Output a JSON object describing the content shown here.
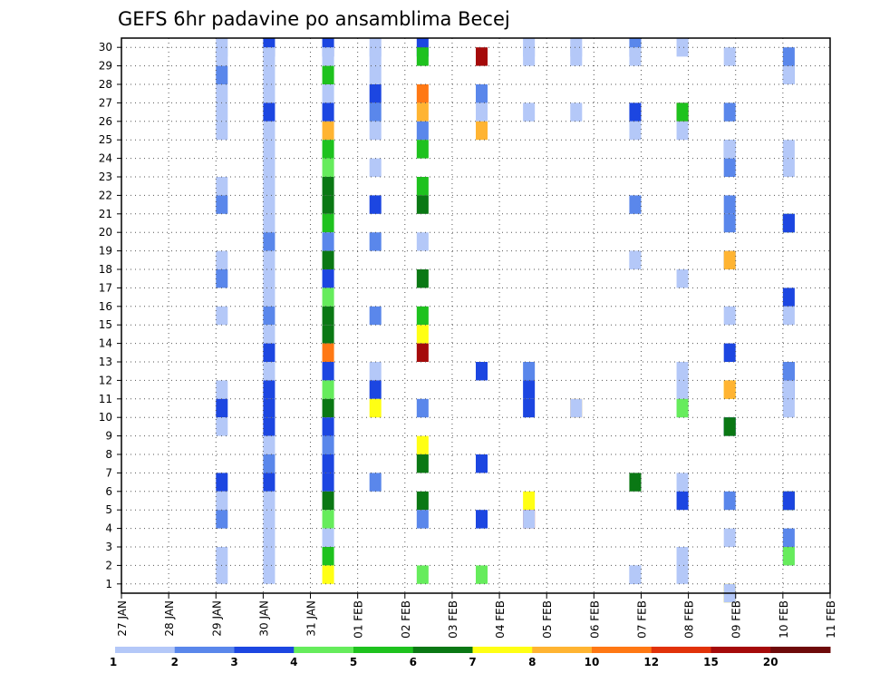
{
  "chart_data": {
    "type": "heatmap",
    "title": "GEFS 6hr padavine po ansamblima Becej",
    "x_ticks": [
      "27 JAN",
      "28 JAN",
      "29 JAN",
      "30 JAN",
      "31 JAN",
      "01 FEB",
      "02 FEB",
      "03 FEB",
      "04 FEB",
      "05 FEB",
      "06 FEB",
      "07 FEB",
      "08 FEB",
      "09 FEB",
      "10 FEB",
      "11 FEB"
    ],
    "y_ticks": [
      1,
      2,
      3,
      4,
      5,
      6,
      7,
      8,
      9,
      10,
      11,
      12,
      13,
      14,
      15,
      16,
      17,
      18,
      19,
      20,
      21,
      22,
      23,
      24,
      25,
      26,
      27,
      28,
      29,
      30
    ],
    "time_steps_per_day": 4,
    "members": 30,
    "grid": true,
    "colorbar": {
      "levels": [
        1,
        2,
        3,
        4,
        5,
        6,
        7,
        8,
        10,
        12,
        15,
        20
      ],
      "colors": [
        "#b4c8f8",
        "#5a87eb",
        "#1c46e1",
        "#66ec5c",
        "#1ec21e",
        "#0a7814",
        "#ffff14",
        "#ffb432",
        "#ff7814",
        "#e1320a",
        "#a50a0a",
        "#6e0a0a"
      ]
    },
    "cells": [
      [
        0,
        30,
        1
      ],
      [
        0,
        29,
        1
      ],
      [
        0,
        28,
        2
      ],
      [
        0,
        27,
        1
      ],
      [
        0,
        26,
        1
      ],
      [
        0,
        25,
        1
      ],
      [
        0,
        22,
        1
      ],
      [
        0,
        21,
        2
      ],
      [
        0,
        18,
        1
      ],
      [
        0,
        17,
        2
      ],
      [
        0,
        15,
        1
      ],
      [
        0,
        11,
        1
      ],
      [
        0,
        10,
        3
      ],
      [
        0,
        9,
        1
      ],
      [
        0,
        6,
        3
      ],
      [
        0,
        5,
        1
      ],
      [
        0,
        4,
        2
      ],
      [
        0,
        2,
        1
      ],
      [
        0,
        1,
        1
      ],
      [
        1,
        30,
        3
      ],
      [
        1,
        29,
        1
      ],
      [
        1,
        28,
        1
      ],
      [
        1,
        27,
        1
      ],
      [
        1,
        26,
        3
      ],
      [
        1,
        25,
        1
      ],
      [
        1,
        24,
        1
      ],
      [
        1,
        23,
        1
      ],
      [
        1,
        22,
        1
      ],
      [
        1,
        21,
        1
      ],
      [
        1,
        20,
        1
      ],
      [
        1,
        19,
        2
      ],
      [
        1,
        18,
        1
      ],
      [
        1,
        17,
        1
      ],
      [
        1,
        16,
        1
      ],
      [
        1,
        15,
        2
      ],
      [
        1,
        14,
        1
      ],
      [
        1,
        13,
        3
      ],
      [
        1,
        12,
        1
      ],
      [
        1,
        11,
        3
      ],
      [
        1,
        10,
        3
      ],
      [
        1,
        9,
        3
      ],
      [
        1,
        8,
        1
      ],
      [
        1,
        7,
        2
      ],
      [
        1,
        6,
        3
      ],
      [
        1,
        5,
        1
      ],
      [
        1,
        4,
        1
      ],
      [
        1,
        3,
        1
      ],
      [
        1,
        2,
        1
      ],
      [
        1,
        1,
        1
      ],
      [
        2,
        30,
        3
      ],
      [
        2,
        29,
        1
      ],
      [
        2,
        28,
        5
      ],
      [
        2,
        27,
        1
      ],
      [
        2,
        26,
        3
      ],
      [
        2,
        25,
        8
      ],
      [
        2,
        24,
        5
      ],
      [
        2,
        23,
        4
      ],
      [
        2,
        22,
        6
      ],
      [
        2,
        21,
        6
      ],
      [
        2,
        20,
        5
      ],
      [
        2,
        19,
        2
      ],
      [
        2,
        18,
        6
      ],
      [
        2,
        17,
        3
      ],
      [
        2,
        16,
        4
      ],
      [
        2,
        15,
        6
      ],
      [
        2,
        14,
        6
      ],
      [
        2,
        13,
        9
      ],
      [
        2,
        12,
        3
      ],
      [
        2,
        11,
        4
      ],
      [
        2,
        10,
        6
      ],
      [
        2,
        9,
        3
      ],
      [
        2,
        8,
        2
      ],
      [
        2,
        7,
        3
      ],
      [
        2,
        6,
        3
      ],
      [
        2,
        5,
        6
      ],
      [
        2,
        4,
        4
      ],
      [
        2,
        3,
        1
      ],
      [
        2,
        2,
        5
      ],
      [
        2,
        1,
        7
      ],
      [
        3,
        30,
        1
      ],
      [
        3,
        29,
        1
      ],
      [
        3,
        28,
        1
      ],
      [
        3,
        27,
        3
      ],
      [
        3,
        26,
        2
      ],
      [
        3,
        25,
        1
      ],
      [
        3,
        23,
        1
      ],
      [
        3,
        21,
        3
      ],
      [
        3,
        19,
        2
      ],
      [
        3,
        15,
        2
      ],
      [
        3,
        12,
        1
      ],
      [
        3,
        11,
        3
      ],
      [
        3,
        10,
        7
      ],
      [
        3,
        6,
        2
      ],
      [
        4,
        30,
        3
      ],
      [
        4,
        29,
        5
      ],
      [
        4,
        27,
        9
      ],
      [
        4,
        26,
        8
      ],
      [
        4,
        25,
        2
      ],
      [
        4,
        24,
        5
      ],
      [
        4,
        22,
        5
      ],
      [
        4,
        21,
        6
      ],
      [
        4,
        19,
        1
      ],
      [
        4,
        17,
        6
      ],
      [
        4,
        15,
        5
      ],
      [
        4,
        14,
        7
      ],
      [
        4,
        13,
        11
      ],
      [
        4,
        10,
        2
      ],
      [
        4,
        8,
        7
      ],
      [
        4,
        7,
        6
      ],
      [
        4,
        5,
        6
      ],
      [
        4,
        4,
        2
      ],
      [
        4,
        1,
        4
      ],
      [
        5,
        29,
        11
      ],
      [
        5,
        27,
        2
      ],
      [
        5,
        26,
        1
      ],
      [
        5,
        25,
        8
      ],
      [
        5,
        12,
        3
      ],
      [
        5,
        7,
        3
      ],
      [
        5,
        4,
        3
      ],
      [
        5,
        1,
        4
      ],
      [
        6,
        30,
        1
      ],
      [
        6,
        29,
        1
      ],
      [
        6,
        26,
        1
      ],
      [
        6,
        12,
        2
      ],
      [
        6,
        11,
        3
      ],
      [
        6,
        10,
        3
      ],
      [
        6,
        5,
        7
      ],
      [
        6,
        4,
        10
      ],
      [
        6,
        4,
        1
      ],
      [
        7,
        30,
        1
      ],
      [
        7,
        29,
        1
      ],
      [
        7,
        26,
        1
      ],
      [
        7,
        10,
        8
      ],
      [
        7,
        10,
        1
      ],
      [
        8,
        30,
        2
      ],
      [
        8,
        29,
        1
      ],
      [
        8,
        26,
        3
      ],
      [
        8,
        25,
        1
      ],
      [
        8,
        21,
        2
      ],
      [
        8,
        18,
        2
      ],
      [
        8,
        18,
        1
      ],
      [
        8,
        6,
        6
      ],
      [
        8,
        1,
        2
      ],
      [
        8,
        1,
        1
      ],
      [
        9,
        30,
        1
      ],
      [
        9,
        26,
        2
      ],
      [
        9,
        26,
        10
      ],
      [
        9,
        26,
        5
      ],
      [
        9,
        25,
        1
      ],
      [
        9,
        17,
        1
      ],
      [
        9,
        12,
        1
      ],
      [
        9,
        11,
        1
      ],
      [
        9,
        10,
        1
      ],
      [
        9,
        10,
        4
      ],
      [
        9,
        6,
        1
      ],
      [
        9,
        5,
        3
      ],
      [
        9,
        2,
        1
      ],
      [
        9,
        1,
        1
      ],
      [
        10,
        29,
        1
      ],
      [
        10,
        26,
        2
      ],
      [
        10,
        24,
        2
      ],
      [
        10,
        23,
        2
      ],
      [
        10,
        24,
        1
      ],
      [
        10,
        21,
        2
      ],
      [
        10,
        20,
        2
      ],
      [
        10,
        18,
        2
      ],
      [
        10,
        18,
        8
      ],
      [
        10,
        15,
        1
      ],
      [
        10,
        13,
        3
      ],
      [
        10,
        11,
        7
      ],
      [
        10,
        11,
        8
      ],
      [
        10,
        9,
        4
      ],
      [
        10,
        9,
        3
      ],
      [
        10,
        9,
        6
      ],
      [
        10,
        5,
        2
      ],
      [
        10,
        3,
        1
      ],
      [
        10,
        0,
        8
      ],
      [
        10,
        0,
        7
      ],
      [
        10,
        0,
        1
      ],
      [
        11,
        28,
        2
      ],
      [
        11,
        28,
        1
      ],
      [
        11,
        24,
        1
      ],
      [
        11,
        20,
        5
      ],
      [
        11,
        20,
        2
      ],
      [
        11,
        20,
        3
      ],
      [
        11,
        16,
        3
      ],
      [
        11,
        15,
        1
      ],
      [
        11,
        12,
        3
      ],
      [
        11,
        12,
        2
      ],
      [
        11,
        11,
        3
      ],
      [
        11,
        11,
        3
      ],
      [
        11,
        11,
        1
      ],
      [
        11,
        10,
        1
      ],
      [
        11,
        5,
        2
      ],
      [
        11,
        5,
        6
      ],
      [
        11,
        5,
        3
      ],
      [
        11,
        3,
        2
      ],
      [
        11,
        2,
        2
      ],
      [
        11,
        2,
        1
      ],
      [
        11,
        2,
        1
      ],
      [
        11,
        2,
        4
      ],
      [
        11,
        23,
        1
      ],
      [
        11,
        29,
        2
      ]
    ]
  }
}
